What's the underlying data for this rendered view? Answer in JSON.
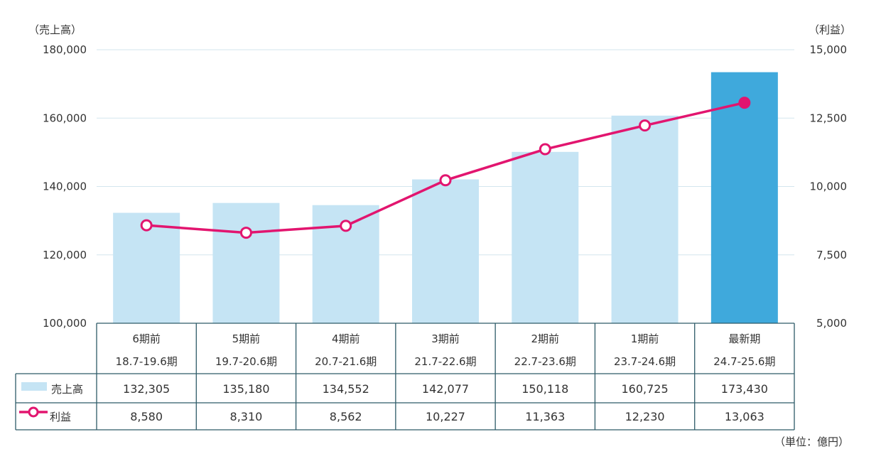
{
  "chart_data": {
    "type": "bar+line",
    "left_axis_label": "（売上高）",
    "right_axis_label": "（利益）",
    "unit_note": "（単位：億円）",
    "left_ylim": [
      100000,
      180000
    ],
    "left_ticks": [
      "100,000",
      "120,000",
      "140,000",
      "160,000",
      "180,000"
    ],
    "left_tick_values": [
      100000,
      120000,
      140000,
      160000,
      180000
    ],
    "right_ylim": [
      5000,
      15000
    ],
    "right_ticks": [
      "5,000",
      "7,500",
      "10,000",
      "12,500",
      "15,000"
    ],
    "right_tick_values": [
      5000,
      7500,
      10000,
      12500,
      15000
    ],
    "grid": true,
    "categories": [
      {
        "period": "6期前",
        "range": "18.7-19.6期"
      },
      {
        "period": "5期前",
        "range": "19.7-20.6期"
      },
      {
        "period": "4期前",
        "range": "20.7-21.6期"
      },
      {
        "period": "3期前",
        "range": "21.7-22.6期"
      },
      {
        "period": "2期前",
        "range": "22.7-23.6期"
      },
      {
        "period": "1期前",
        "range": "23.7-24.6期"
      },
      {
        "period": "最新期",
        "range": "24.7-25.6期"
      }
    ],
    "series": [
      {
        "name": "売上高",
        "type": "bar",
        "axis": "left",
        "color": "#c5e4f4",
        "highlight_color": "#3fa9dc",
        "values": [
          132305,
          135180,
          134552,
          142077,
          150118,
          160725,
          173430
        ],
        "labels": [
          "132,305",
          "135,180",
          "134,552",
          "142,077",
          "150,118",
          "160,725",
          "173,430"
        ]
      },
      {
        "name": "利益",
        "type": "line",
        "axis": "right",
        "color": "#e2156f",
        "values": [
          8580,
          8310,
          8562,
          10227,
          11363,
          12230,
          13063
        ],
        "labels": [
          "8,580",
          "8,310",
          "8,562",
          "10,227",
          "11,363",
          "12,230",
          "13,063"
        ]
      }
    ]
  }
}
